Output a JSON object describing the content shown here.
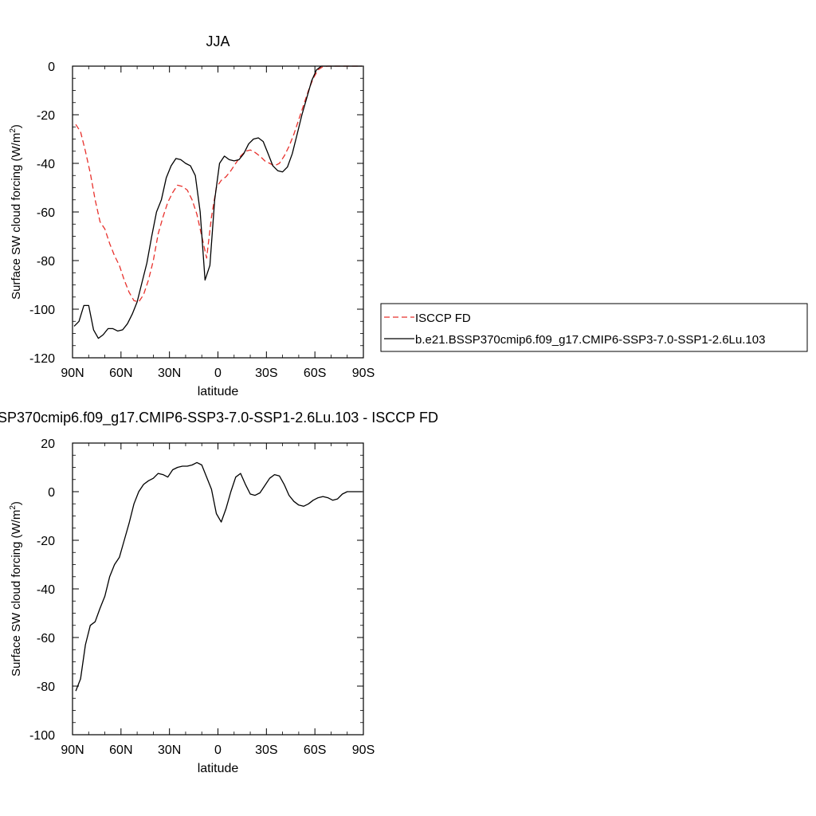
{
  "chart_data": [
    {
      "type": "line",
      "title": "JJA",
      "xlabel": "latitude",
      "ylabel": "Surface SW cloud forcing (W/m",
      "ylabel_sup": "2",
      "ylabel_close": ")",
      "xlim": [
        90,
        -90
      ],
      "ylim": [
        -120,
        0
      ],
      "xticks": [
        90,
        60,
        30,
        0,
        -30,
        -60,
        -90
      ],
      "xtick_labels": [
        "90N",
        "60N",
        "30N",
        "0",
        "30S",
        "60S",
        "90S"
      ],
      "yticks": [
        0,
        -20,
        -40,
        -60,
        -80,
        -100,
        -120
      ],
      "ytick_labels": [
        "0",
        "-20",
        "-40",
        "-60",
        "-80",
        "-100",
        "-120"
      ],
      "legend_position": "right",
      "series": [
        {
          "name": "ISCCP FD",
          "color": "#e8312c",
          "dash": "dashed",
          "x": [
            88,
            85,
            82,
            79,
            76,
            73,
            70,
            67,
            64,
            61,
            58,
            55,
            52,
            49,
            46,
            43,
            40,
            37,
            34,
            31,
            28,
            25,
            22,
            19,
            16,
            13,
            10,
            7,
            4,
            1,
            -2,
            -5,
            -8,
            -11,
            -14,
            -17,
            -20,
            -23,
            -26,
            -29,
            -32,
            -35,
            -38,
            -41,
            -44,
            -47,
            -50,
            -53,
            -56,
            -59,
            -62,
            -65,
            -68,
            -71,
            -74,
            -77,
            -80,
            -83,
            -86,
            -89
          ],
          "y": [
            -24,
            -27,
            -35,
            -44,
            -55,
            -64,
            -67,
            -73,
            -78,
            -82,
            -88,
            -93,
            -96.5,
            -97,
            -94,
            -88,
            -80,
            -69,
            -62,
            -56,
            -52,
            -49,
            -49.5,
            -51,
            -55,
            -61,
            -70,
            -79,
            -62,
            -50,
            -47,
            -45.5,
            -43,
            -40,
            -37,
            -35,
            -34.5,
            -35.5,
            -37,
            -39,
            -40,
            -41,
            -40,
            -37,
            -33,
            -28,
            -22,
            -16,
            -10,
            -5,
            -1.5,
            -0.2,
            0,
            0,
            0,
            0,
            0,
            0,
            0,
            0
          ]
        },
        {
          "name": "b.e21.BSSP370cmip6.f09_g17.CMIP6-SSP3-7.0-SSP1-2.6Lu.103",
          "color": "#000000",
          "dash": "solid",
          "x": [
            89,
            86,
            83,
            80,
            77,
            74,
            71,
            68,
            65,
            62,
            59,
            56,
            53,
            50,
            47,
            44,
            41,
            38,
            35,
            32,
            29,
            26,
            23,
            20,
            17,
            14,
            11,
            8,
            5,
            2,
            -1,
            -4,
            -7,
            -10,
            -13,
            -16,
            -19,
            -22,
            -25,
            -28,
            -31,
            -34,
            -37,
            -40,
            -43,
            -46,
            -49,
            -52,
            -55,
            -58,
            -61,
            -64,
            -67,
            -70,
            -73,
            -76,
            -79,
            -82,
            -85,
            -89
          ],
          "y": [
            -107,
            -105,
            -98.5,
            -98.5,
            -108.5,
            -112,
            -110.5,
            -108,
            -108,
            -109,
            -108.5,
            -106,
            -102,
            -97,
            -89,
            -81,
            -70,
            -60,
            -55,
            -46,
            -41,
            -38,
            -38.5,
            -40,
            -41,
            -45,
            -60,
            -88,
            -82,
            -55,
            -40,
            -37,
            -38.5,
            -39,
            -38.5,
            -36,
            -32,
            -30,
            -29.5,
            -31,
            -36,
            -41,
            -43,
            -43.5,
            -41.5,
            -36,
            -28,
            -20,
            -13,
            -6,
            -1.5,
            0,
            0,
            0,
            0,
            0,
            0,
            0,
            0,
            0
          ]
        }
      ]
    },
    {
      "type": "line",
      "title": "SP370cmip6.f09_g17.CMIP6-SSP3-7.0-SSP1-2.6Lu.103 - ISCCP FD",
      "xlabel": "latitude",
      "ylabel": "Surface SW cloud forcing (W/m",
      "ylabel_sup": "2",
      "ylabel_close": ")",
      "xlim": [
        90,
        -90
      ],
      "ylim": [
        -100,
        20
      ],
      "xticks": [
        90,
        60,
        30,
        0,
        -30,
        -60,
        -90
      ],
      "xtick_labels": [
        "90N",
        "60N",
        "30N",
        "0",
        "30S",
        "60S",
        "90S"
      ],
      "yticks": [
        20,
        0,
        -20,
        -40,
        -60,
        -80,
        -100
      ],
      "ytick_labels": [
        "20",
        "0",
        "-20",
        "-40",
        "-60",
        "-80",
        "-100"
      ],
      "series": [
        {
          "name": "",
          "color": "#000000",
          "dash": "solid",
          "x": [
            88,
            85,
            82,
            79,
            76,
            73,
            70,
            67,
            64,
            61,
            58,
            55,
            52,
            49,
            46,
            43,
            40,
            37,
            34,
            31,
            28,
            25,
            22,
            19,
            16,
            13,
            10,
            7,
            4,
            1,
            -2,
            -5,
            -8,
            -11,
            -14,
            -17,
            -20,
            -23,
            -26,
            -29,
            -32,
            -35,
            -38,
            -41,
            -44,
            -47,
            -50,
            -53,
            -56,
            -59,
            -62,
            -65,
            -68,
            -71,
            -74,
            -77,
            -80,
            -83,
            -86,
            -89
          ],
          "y": [
            -82,
            -77,
            -63,
            -55,
            -53.5,
            -48,
            -43,
            -35,
            -30,
            -27,
            -20,
            -13,
            -5,
            0,
            3,
            4.5,
            5.5,
            7.5,
            7,
            6,
            9,
            10,
            10.5,
            10.5,
            11,
            12,
            11,
            6,
            1,
            -9,
            -12.5,
            -7,
            0,
            6,
            7.5,
            3,
            -1,
            -1.5,
            -0.5,
            2.5,
            5.5,
            7,
            6.5,
            3,
            -1.5,
            -4,
            -5.5,
            -6,
            -5,
            -3.5,
            -2.5,
            -2,
            -2.5,
            -3.5,
            -3,
            -1,
            0,
            0,
            0,
            0
          ]
        }
      ]
    }
  ]
}
